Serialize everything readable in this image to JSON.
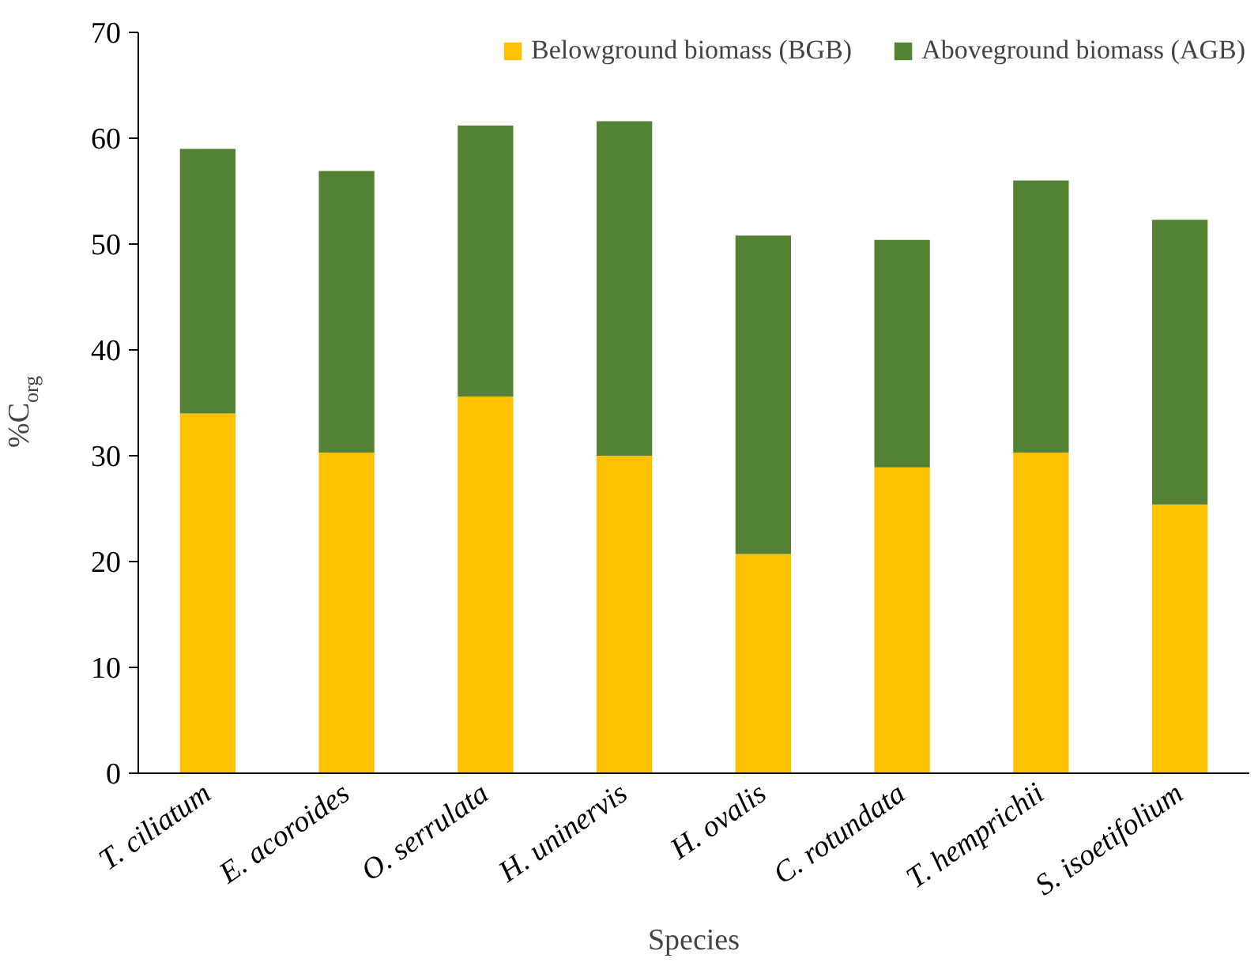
{
  "chart_data": {
    "type": "bar",
    "stacked": true,
    "xlabel": "Species",
    "ylabel": "%C$_{org}$",
    "categories": [
      "T. ciliatum",
      "E. acoroides",
      "O. serrulata",
      "H. uninervis",
      "H. ovalis",
      "C. rotundata",
      "T. hemprichii",
      "S. isoetifolium"
    ],
    "series": [
      {
        "name": "Belowground biomass (BGB)",
        "color": "#ffc000",
        "values": [
          34.0,
          30.3,
          35.6,
          30.0,
          20.7,
          28.9,
          30.3,
          25.4
        ]
      },
      {
        "name": "Aboveground biomass (AGB)",
        "color": "#548235",
        "values": [
          25.0,
          26.6,
          25.6,
          31.6,
          30.1,
          21.5,
          25.7,
          26.9
        ]
      }
    ],
    "ylim": [
      0,
      70
    ],
    "yticks": [
      0,
      10,
      20,
      30,
      40,
      50,
      60,
      70
    ],
    "grid": false,
    "legend": "top right"
  }
}
